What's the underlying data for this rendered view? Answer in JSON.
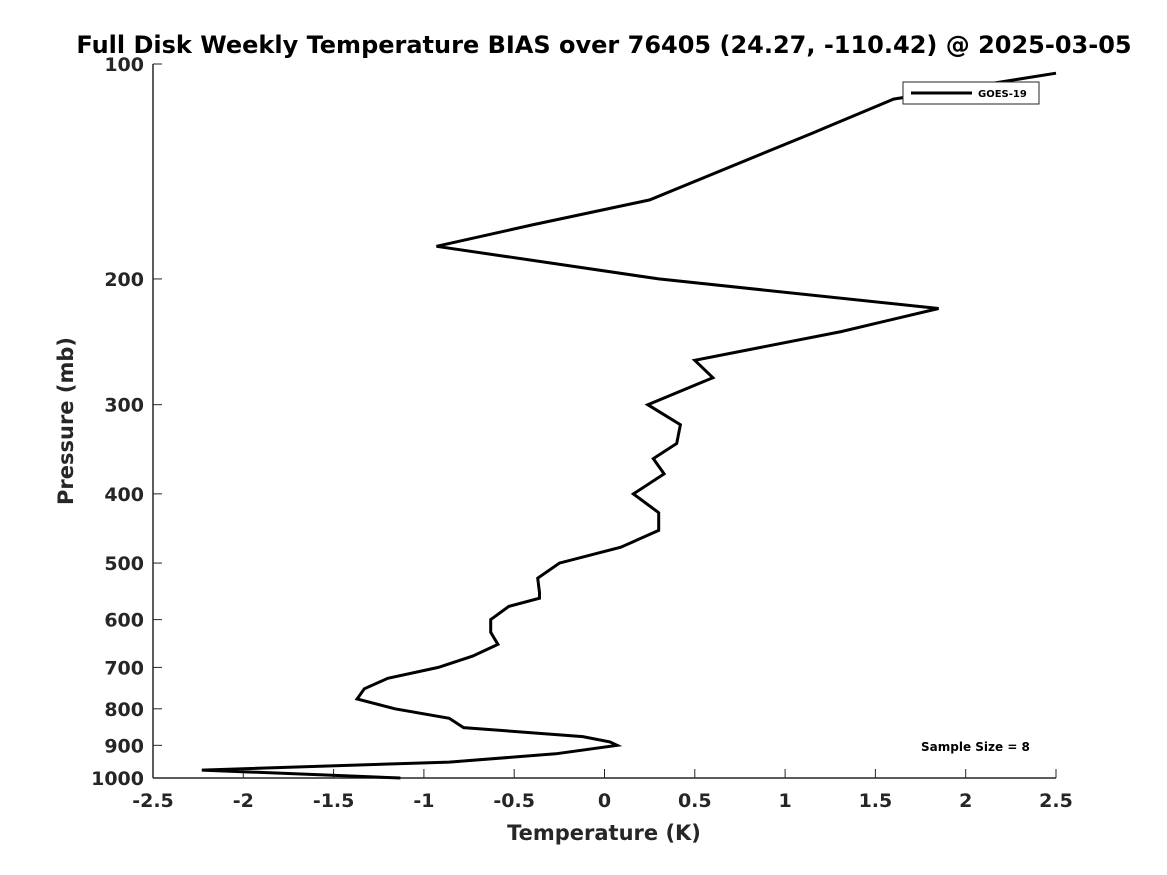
{
  "chart_data": {
    "type": "line",
    "title": "Full Disk Weekly Temperature BIAS over 76405 (24.27, -110.42) @ 2025-03-05",
    "xlabel": "Temperature (K)",
    "ylabel": "Pressure (mb)",
    "xlim": [
      -2.5,
      2.5
    ],
    "ylim": [
      100,
      1000
    ],
    "yscale": "log",
    "yreversed": true,
    "xticks": [
      -2.5,
      -2,
      -1.5,
      -1,
      -0.5,
      0,
      0.5,
      1,
      1.5,
      2,
      2.5
    ],
    "xtick_labels": [
      "-2.5",
      "-2",
      "-1.5",
      "-1",
      "-0.5",
      "0",
      "0.5",
      "1",
      "1.5",
      "2",
      "2.5"
    ],
    "yticks": [
      100,
      200,
      300,
      400,
      500,
      600,
      700,
      800,
      900,
      1000
    ],
    "ytick_labels": [
      "100",
      "200",
      "300",
      "400",
      "500",
      "600",
      "700",
      "800",
      "900",
      "1000"
    ],
    "grid": false,
    "legend_position": "top-right",
    "series": [
      {
        "name": "GOES-19",
        "color": "#000000",
        "x": [
          2.5,
          1.6,
          1.15,
          0.25,
          -0.4,
          -0.93,
          0.3,
          1.85,
          1.31,
          0.5,
          0.6,
          0.24,
          0.42,
          0.4,
          0.27,
          0.33,
          0.16,
          0.3,
          0.3,
          0.09,
          -0.25,
          -0.37,
          -0.36,
          -0.36,
          -0.53,
          -0.63,
          -0.63,
          -0.59,
          -0.73,
          -0.92,
          -1.2,
          -1.33,
          -1.37,
          -1.16,
          -0.86,
          -0.78,
          -0.12,
          0.03,
          0.07,
          -0.27,
          -0.86,
          -2.23,
          -1.13
        ],
        "y": [
          103,
          112,
          125,
          155,
          168,
          180,
          200,
          220,
          237,
          260,
          275,
          300,
          320,
          340,
          357,
          375,
          400,
          425,
          450,
          475,
          500,
          525,
          550,
          560,
          575,
          600,
          625,
          650,
          675,
          700,
          725,
          750,
          775,
          800,
          825,
          850,
          875,
          890,
          900,
          925,
          950,
          975,
          1000
        ]
      }
    ],
    "annotations": [
      "Sample Size = 8"
    ]
  }
}
